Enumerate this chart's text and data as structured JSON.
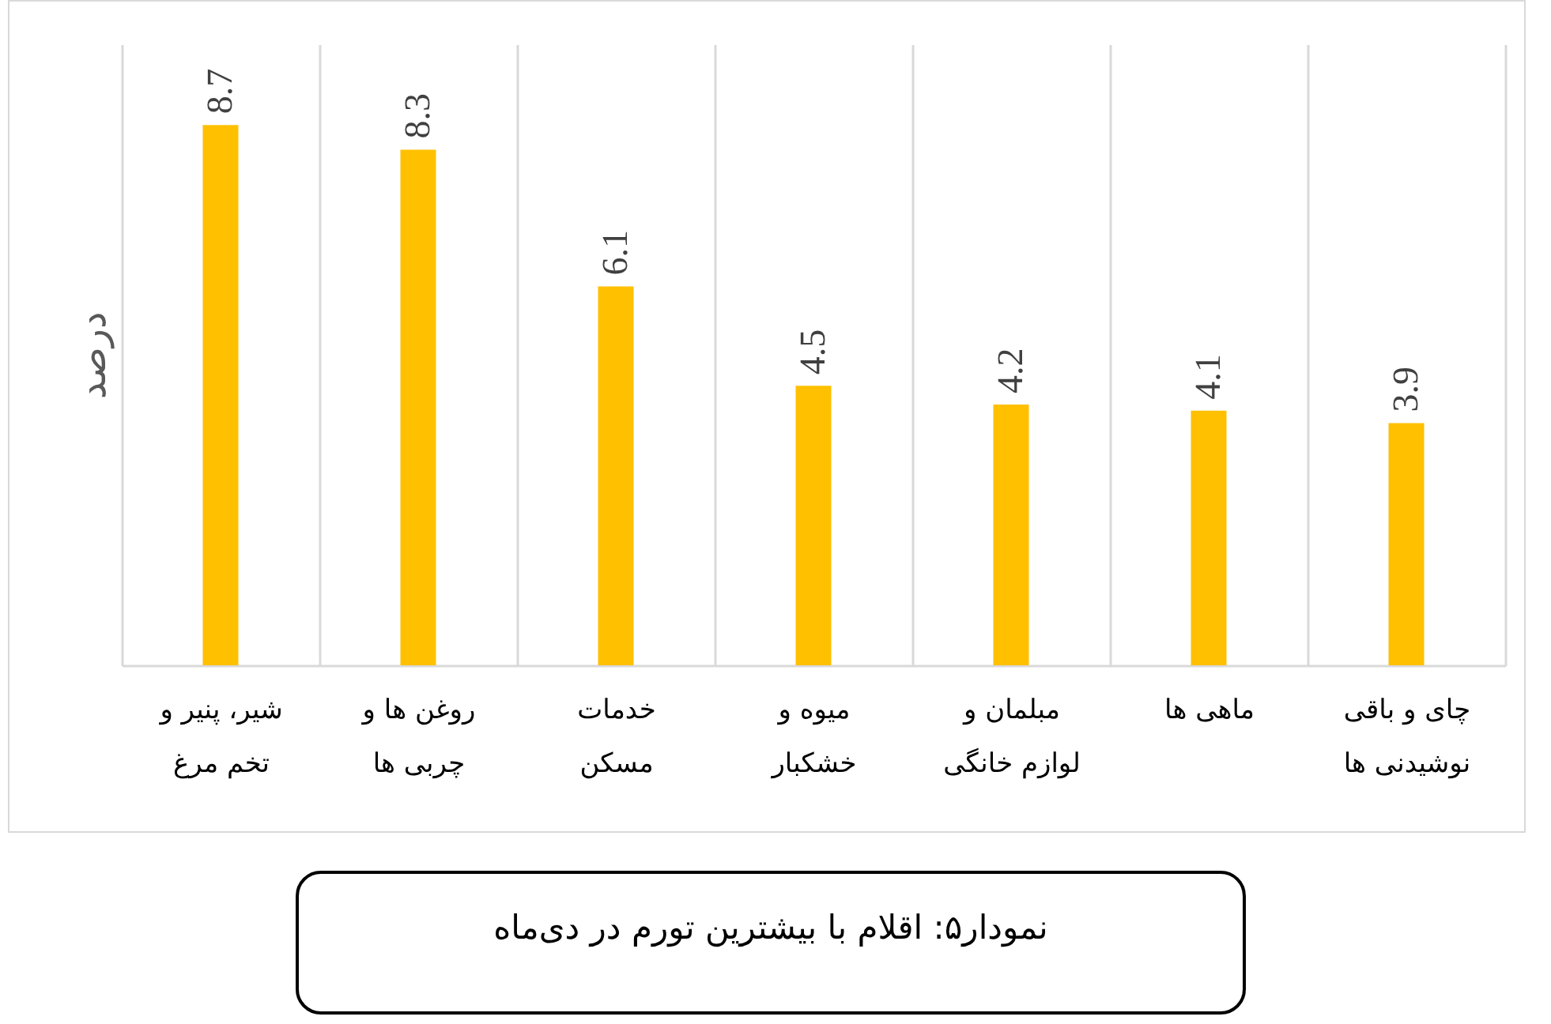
{
  "chart_data": {
    "type": "bar",
    "title": "نمودار۵: اقلام با بیشترین تورم در دی‌ماه",
    "ylabel": "درصد",
    "categories": [
      "شیر، پنیر و\nتخم مرغ",
      "روغن ها و\nچربی ها",
      "خدمات\nمسکن",
      "میوه و\nخشکبار",
      "مبلمان و\nلوازم خانگی",
      "ماهی ها",
      "چای و باقی\nنوشیدنی ها"
    ],
    "values": [
      8.7,
      8.3,
      6.1,
      4.5,
      4.2,
      4.1,
      3.9
    ],
    "color": "#ffc000",
    "data_labels": true,
    "ylim": [
      0,
      10
    ],
    "grid": "x",
    "tick_labels": "x"
  }
}
